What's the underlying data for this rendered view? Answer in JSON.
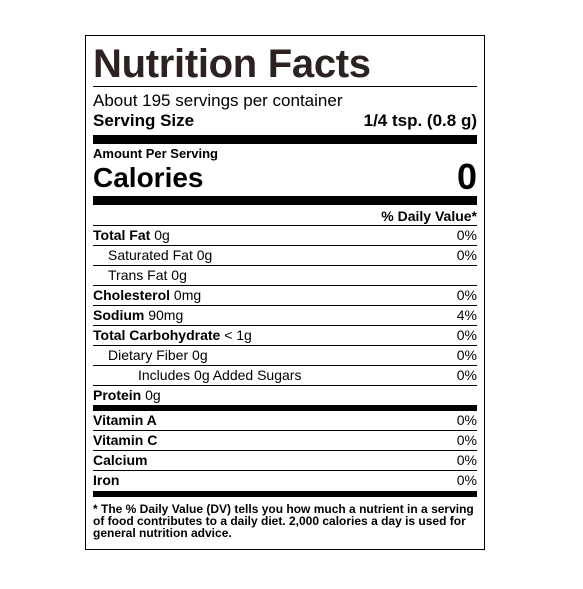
{
  "title": "Nutrition Facts",
  "servings": "About 195 servings per container",
  "serving_size": {
    "label": "Serving Size",
    "value": "1/4 tsp. (0.8 g)"
  },
  "amount_per_serving": "Amount Per Serving",
  "calories": {
    "label": "Calories",
    "value": "0"
  },
  "daily_value_header": "% Daily Value*",
  "nutrients": [
    {
      "name": "Total Fat",
      "amount": "0g",
      "dv": "0%"
    },
    {
      "name": "Saturated Fat",
      "amount": "0g",
      "dv": "0%"
    },
    {
      "name": "Trans Fat",
      "amount": "0g"
    },
    {
      "name": "Cholesterol",
      "amount": "0mg",
      "dv": "0%"
    },
    {
      "name": "Sodium",
      "amount": "90mg",
      "dv": "4%"
    },
    {
      "name": "Total Carbohydrate",
      "amount": "< 1g",
      "dv": "0%"
    },
    {
      "name": "Dietary Fiber",
      "amount": "0g",
      "dv": "0%"
    },
    {
      "name": "Includes 0g Added Sugars",
      "dv": "0%"
    },
    {
      "name": "Protein",
      "amount": "0g"
    }
  ],
  "vitamins": [
    {
      "name": "Vitamin A",
      "dv": "0%"
    },
    {
      "name": "Vitamin C",
      "dv": "0%"
    },
    {
      "name": "Calcium",
      "dv": "0%"
    },
    {
      "name": "Iron",
      "dv": "0%"
    }
  ],
  "footnote": "* The % Daily Value (DV) tells you how much a nutrient in a serving of food contributes to a daily diet. 2,000 calories a day is used for general nutrition advice."
}
